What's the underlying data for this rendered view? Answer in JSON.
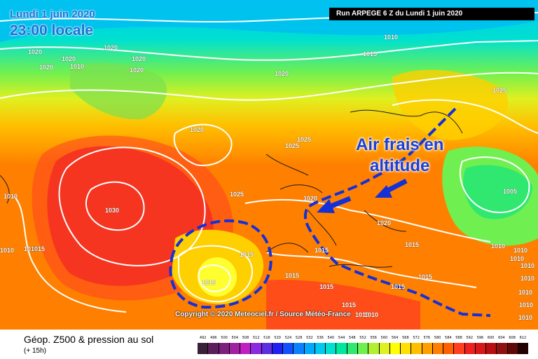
{
  "header": {
    "date_label": "Lundi 1 juin 2020",
    "time_label": "23:00 locale",
    "run_label": "Run ARPEGE 6 Z du Lundi 1 juin 2020"
  },
  "annotation": {
    "line1": "Air frais en",
    "line2": "altitude",
    "color": "#1a3fd8"
  },
  "credit": "Copyright © 2020 Meteociel.fr / Source Météo-France",
  "footer": {
    "title": "Géop. Z500 & pression au sol",
    "subtitle": "(+ 15h)"
  },
  "scale": {
    "values": [
      "492",
      "496",
      "500",
      "504",
      "508",
      "512",
      "516",
      "520",
      "524",
      "528",
      "532",
      "536",
      "540",
      "544",
      "548",
      "552",
      "556",
      "560",
      "564",
      "568",
      "572",
      "576",
      "580",
      "584",
      "588",
      "592",
      "596",
      "600",
      "604",
      "608",
      "612"
    ],
    "colors": [
      "#3a1f3a",
      "#5c1f5c",
      "#7d1f7d",
      "#a020a0",
      "#c020c0",
      "#8a2be2",
      "#5a30e0",
      "#2020f0",
      "#1050ff",
      "#0a80ff",
      "#00a8ff",
      "#00c8f0",
      "#00e0d0",
      "#00e8a0",
      "#30e870",
      "#70f050",
      "#b0f030",
      "#e0f020",
      "#ffff00",
      "#ffe000",
      "#ffc000",
      "#ffa000",
      "#ff8000",
      "#ff6000",
      "#ff4020",
      "#f02020",
      "#d81818",
      "#b81010",
      "#901010",
      "#600808",
      "#200000"
    ]
  },
  "isobars": [
    {
      "v": "1010",
      "cls": "i1"
    },
    {
      "v": "1020",
      "cls": "i2"
    },
    {
      "v": "1020",
      "cls": "i3"
    },
    {
      "v": "1020",
      "cls": "i4"
    },
    {
      "v": "1020",
      "cls": "i5"
    },
    {
      "v": "1020",
      "cls": "i6"
    },
    {
      "v": "1020",
      "cls": "i7"
    },
    {
      "v": "1015",
      "cls": "i8"
    },
    {
      "v": "1010",
      "cls": "i9"
    },
    {
      "v": "1020",
      "cls": "i10"
    },
    {
      "v": "1025",
      "cls": "i11"
    },
    {
      "v": "1020",
      "cls": "i12"
    },
    {
      "v": "1025",
      "cls": "i13"
    },
    {
      "v": "1025",
      "cls": "i14"
    },
    {
      "v": "1030",
      "cls": "i15"
    },
    {
      "v": "1025",
      "cls": "i16"
    },
    {
      "v": "1020",
      "cls": "i17"
    },
    {
      "v": "1005",
      "cls": "i18"
    },
    {
      "v": "1010",
      "cls": "i19"
    },
    {
      "v": "1010",
      "cls": "i20"
    },
    {
      "v": "1010",
      "cls": "i21"
    },
    {
      "v": "1015",
      "cls": "i22"
    },
    {
      "v": "1020",
      "cls": "i23"
    },
    {
      "v": "1015",
      "cls": "i24"
    },
    {
      "v": "1010",
      "cls": "i25"
    },
    {
      "v": "1015",
      "cls": "i26"
    },
    {
      "v": "1015",
      "cls": "i27"
    },
    {
      "v": "1015",
      "cls": "i28"
    },
    {
      "v": "1015",
      "cls": "i29"
    },
    {
      "v": "1015",
      "cls": "i30"
    },
    {
      "v": "1010",
      "cls": "i31"
    },
    {
      "v": "1015",
      "cls": "i32"
    },
    {
      "v": "1010",
      "cls": "i33"
    },
    {
      "v": "1015",
      "cls": "i34"
    },
    {
      "v": "1010",
      "cls": "i35"
    },
    {
      "v": "1010",
      "cls": "i36"
    },
    {
      "v": "1010",
      "cls": "i37"
    },
    {
      "v": "1010",
      "cls": "i38"
    },
    {
      "v": "1010",
      "cls": "i39"
    },
    {
      "v": "1010",
      "cls": "i40"
    },
    {
      "v": "1010",
      "cls": "i41"
    },
    {
      "v": "1010",
      "cls": "i42"
    }
  ]
}
